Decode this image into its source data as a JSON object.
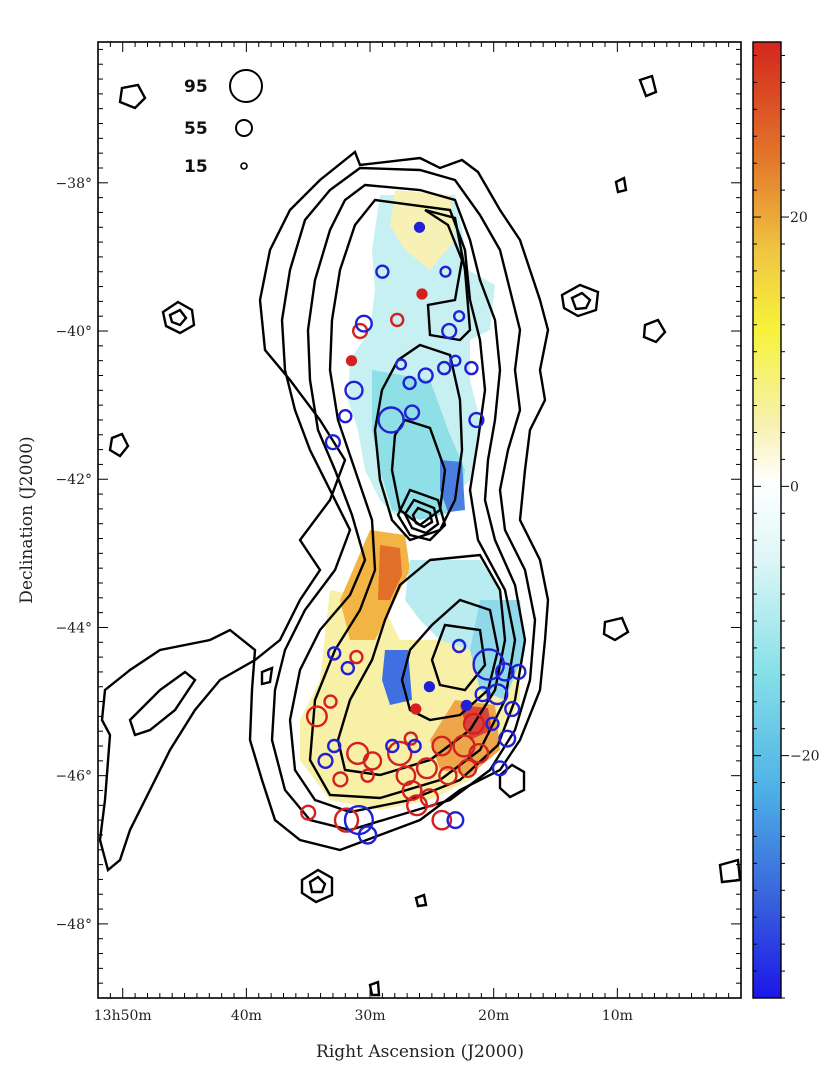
{
  "chart_data": {
    "type": "scatter",
    "title": "",
    "xlabel": "Right Ascension (J2000)",
    "ylabel": "Declination (J2000)",
    "x_unit": "RA minutes past 13h",
    "y_unit": "deg",
    "xlim": [
      52,
      0
    ],
    "ylim": [
      -49,
      -36.1
    ],
    "x_ticks": [
      {
        "value": 50,
        "label": "13h50m"
      },
      {
        "value": 40,
        "label": "40m"
      },
      {
        "value": 30,
        "label": "30m"
      },
      {
        "value": 20,
        "label": "20m"
      },
      {
        "value": 10,
        "label": "10m"
      }
    ],
    "y_ticks": [
      {
        "value": -38,
        "label": "−38°"
      },
      {
        "value": -40,
        "label": "−40°"
      },
      {
        "value": -42,
        "label": "−42°"
      },
      {
        "value": -44,
        "label": "−44°"
      },
      {
        "value": -46,
        "label": "−46°"
      },
      {
        "value": -48,
        "label": "−48°"
      }
    ],
    "grid": false,
    "legend": {
      "placement": "top-left",
      "entries": [
        {
          "label": "95",
          "size": 95
        },
        {
          "label": "55",
          "size": 55
        },
        {
          "label": "15",
          "size": 15
        }
      ]
    },
    "colorbar": {
      "range": [
        -38,
        33
      ],
      "ticks": [
        {
          "value": 20,
          "label": "20"
        },
        {
          "value": 0,
          "label": "0"
        },
        {
          "value": -20,
          "label": "−20"
        }
      ]
    },
    "series": [
      {
        "color": "#d42020",
        "points": [
          {
            "x": 34.3,
            "y": -45.2,
            "s": 40
          },
          {
            "x": 31.0,
            "y": -45.7,
            "s": 45
          },
          {
            "x": 29.8,
            "y": -45.8,
            "s": 30
          },
          {
            "x": 27.6,
            "y": -45.7,
            "s": 55
          },
          {
            "x": 27.1,
            "y": -46.0,
            "s": 35
          },
          {
            "x": 25.4,
            "y": -45.9,
            "s": 40
          },
          {
            "x": 24.2,
            "y": -45.6,
            "s": 35
          },
          {
            "x": 23.7,
            "y": -46.0,
            "s": 30
          },
          {
            "x": 22.4,
            "y": -45.6,
            "s": 45
          },
          {
            "x": 21.6,
            "y": -45.3,
            "s": 40
          },
          {
            "x": 22.1,
            "y": -45.9,
            "s": 30
          },
          {
            "x": 21.2,
            "y": -45.7,
            "s": 35
          },
          {
            "x": 26.6,
            "y": -46.2,
            "s": 35
          },
          {
            "x": 26.2,
            "y": -46.4,
            "s": 40
          },
          {
            "x": 25.2,
            "y": -46.3,
            "s": 30
          },
          {
            "x": 24.2,
            "y": -46.6,
            "s": 35
          },
          {
            "x": 31.9,
            "y": -46.6,
            "s": 55
          },
          {
            "x": 35.0,
            "y": -46.5,
            "s": 20
          },
          {
            "x": 32.4,
            "y": -46.05,
            "s": 20
          },
          {
            "x": 30.2,
            "y": -46.0,
            "s": 15
          },
          {
            "x": 33.2,
            "y": -45.0,
            "s": 15
          },
          {
            "x": 26.7,
            "y": -45.5,
            "s": 15
          },
          {
            "x": 31.1,
            "y": -44.4,
            "s": 15
          },
          {
            "x": 31.5,
            "y": -40.4,
            "s": 8
          },
          {
            "x": 27.8,
            "y": -39.85,
            "s": 15
          },
          {
            "x": 30.8,
            "y": -40.0,
            "s": 20
          },
          {
            "x": 25.8,
            "y": -39.5,
            "s": 8
          },
          {
            "x": 26.3,
            "y": -45.1,
            "s": 8
          }
        ]
      },
      {
        "color": "#2020d4",
        "points": [
          {
            "x": 29.0,
            "y": -39.2,
            "s": 15
          },
          {
            "x": 26.0,
            "y": -38.6,
            "s": 8
          },
          {
            "x": 23.9,
            "y": -39.2,
            "s": 10
          },
          {
            "x": 30.5,
            "y": -39.9,
            "s": 25
          },
          {
            "x": 23.6,
            "y": -40.0,
            "s": 20
          },
          {
            "x": 22.8,
            "y": -39.8,
            "s": 10
          },
          {
            "x": 23.1,
            "y": -40.4,
            "s": 10
          },
          {
            "x": 27.5,
            "y": -40.45,
            "s": 10
          },
          {
            "x": 26.8,
            "y": -40.7,
            "s": 15
          },
          {
            "x": 25.5,
            "y": -40.6,
            "s": 20
          },
          {
            "x": 24.0,
            "y": -40.5,
            "s": 15
          },
          {
            "x": 21.8,
            "y": -40.5,
            "s": 15
          },
          {
            "x": 31.3,
            "y": -40.8,
            "s": 30
          },
          {
            "x": 32.0,
            "y": -41.15,
            "s": 15
          },
          {
            "x": 28.3,
            "y": -41.2,
            "s": 65
          },
          {
            "x": 26.6,
            "y": -41.1,
            "s": 20
          },
          {
            "x": 21.4,
            "y": -41.2,
            "s": 20
          },
          {
            "x": 33.0,
            "y": -41.5,
            "s": 20
          },
          {
            "x": 20.4,
            "y": -44.5,
            "s": 95
          },
          {
            "x": 19.7,
            "y": -44.9,
            "s": 40
          },
          {
            "x": 19.1,
            "y": -44.6,
            "s": 30
          },
          {
            "x": 18.0,
            "y": -44.6,
            "s": 20
          },
          {
            "x": 18.5,
            "y": -45.1,
            "s": 20
          },
          {
            "x": 18.9,
            "y": -45.5,
            "s": 25
          },
          {
            "x": 19.5,
            "y": -45.9,
            "s": 20
          },
          {
            "x": 20.1,
            "y": -45.3,
            "s": 15
          },
          {
            "x": 20.9,
            "y": -44.9,
            "s": 20
          },
          {
            "x": 33.6,
            "y": -45.8,
            "s": 20
          },
          {
            "x": 32.9,
            "y": -45.6,
            "s": 15
          },
          {
            "x": 30.9,
            "y": -46.6,
            "s": 80
          },
          {
            "x": 30.2,
            "y": -46.8,
            "s": 30
          },
          {
            "x": 23.1,
            "y": -46.6,
            "s": 25
          },
          {
            "x": 26.4,
            "y": -45.6,
            "s": 15
          },
          {
            "x": 28.2,
            "y": -45.6,
            "s": 15
          },
          {
            "x": 32.9,
            "y": -44.35,
            "s": 15
          },
          {
            "x": 31.8,
            "y": -44.55,
            "s": 15
          },
          {
            "x": 25.2,
            "y": -44.8,
            "s": 8
          },
          {
            "x": 22.2,
            "y": -45.05,
            "s": 8
          },
          {
            "x": 22.8,
            "y": -44.25,
            "s": 15
          }
        ]
      }
    ]
  }
}
